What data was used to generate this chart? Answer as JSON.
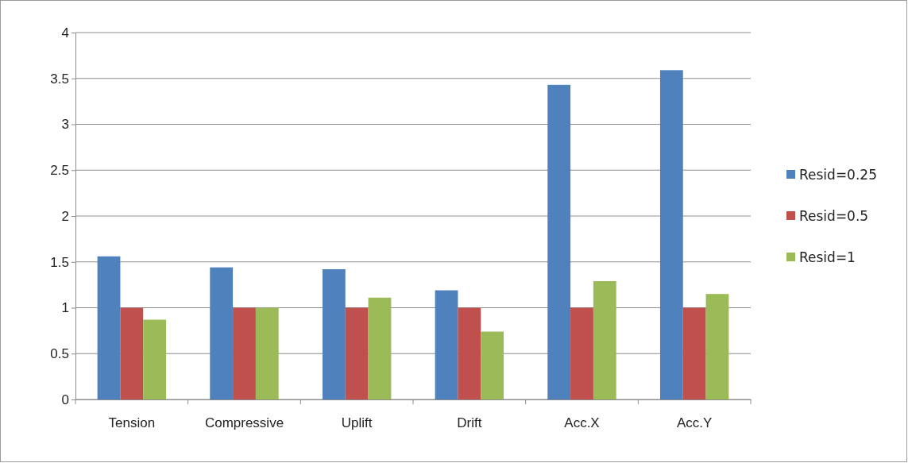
{
  "chart_data": {
    "type": "bar",
    "categories": [
      "Tension",
      "Compressive",
      "Uplift",
      "Drift",
      "Acc.X",
      "Acc.Y"
    ],
    "series": [
      {
        "name": "Resid=0.25",
        "color": "#4f81bd",
        "values": [
          1.56,
          1.44,
          1.42,
          1.19,
          3.43,
          3.59
        ]
      },
      {
        "name": "Resid=0.5",
        "color": "#c0504d",
        "values": [
          1,
          1,
          1,
          1,
          1,
          1
        ]
      },
      {
        "name": "Resid=1",
        "color": "#9bbb59",
        "values": [
          0.87,
          1,
          1.11,
          0.74,
          1.29,
          1.15
        ]
      }
    ],
    "ylim": [
      0,
      4
    ],
    "yticks": [
      0,
      0.5,
      1,
      1.5,
      2,
      2.5,
      3,
      3.5,
      4
    ],
    "grid": "y",
    "legend": "right"
  }
}
